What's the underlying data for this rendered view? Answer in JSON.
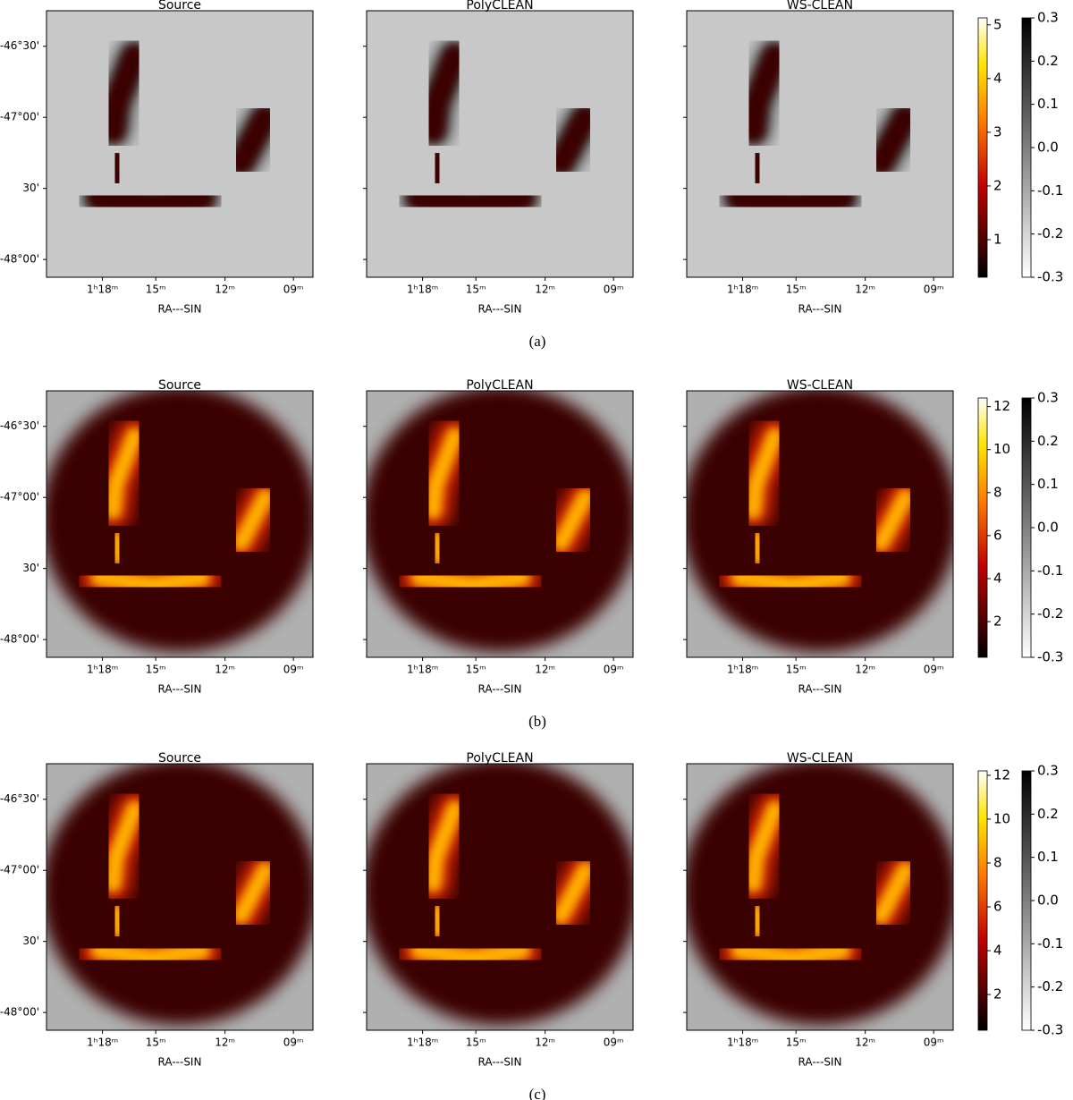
{
  "figure": {
    "rows": [
      {
        "label": "(a)",
        "panels": [
          "Source",
          "PolyCLEAN",
          "WS-CLEAN"
        ],
        "xticks": [
          "1ʰ18ᵐ",
          "15ᵐ",
          "12ᵐ",
          "09ᵐ"
        ],
        "yticks": [
          "-46°30'",
          "-47°00'",
          "30'",
          "-48°00'"
        ],
        "xlabel": "RA---SIN",
        "colorbar": {
          "lim": [
            0.3,
            5.13
          ],
          "ticks": [
            1,
            2,
            3,
            4,
            5
          ]
        },
        "colorbar2": {
          "lim": [
            -0.3,
            0.3
          ],
          "ticks": [
            0.3,
            0.2,
            0.1,
            {
              "value": 0,
              "label": "0.0"
            },
            -0.1,
            -0.2,
            -0.3
          ]
        }
      },
      {
        "label": "(b)",
        "panels": [
          "Source",
          "PolyCLEAN",
          "WS-CLEAN"
        ],
        "xticks": [
          "1ʰ18ᵐ",
          "15ᵐ",
          "12ᵐ",
          "09ᵐ"
        ],
        "yticks": [
          "-46°30'",
          "-47°00'",
          "30'",
          "-48°00'"
        ],
        "xlabel": "RA---SIN",
        "colorbar": {
          "lim": [
            0.34,
            12.4
          ],
          "ticks": [
            2,
            4,
            6,
            8,
            10,
            12
          ]
        },
        "colorbar2": {
          "lim": [
            -0.3,
            0.3
          ],
          "ticks": [
            0.3,
            0.2,
            0.1,
            {
              "value": 0,
              "label": "0.0"
            },
            -0.1,
            -0.2,
            -0.3
          ]
        }
      },
      {
        "label": "(c)",
        "panels": [
          "Source",
          "PolyCLEAN",
          "WS-CLEAN"
        ],
        "xticks": [
          "1ʰ18ᵐ",
          "15ᵐ",
          "12ᵐ",
          "09ᵐ"
        ],
        "yticks": [
          "-46°30'",
          "-47°00'",
          "30'",
          "-48°00'"
        ],
        "xlabel": "RA---SIN",
        "colorbar": {
          "lim": [
            0.37,
            12.2
          ],
          "ticks": [
            2,
            4,
            6,
            8,
            10,
            12
          ]
        },
        "colorbar2": {
          "lim": [
            -0.3,
            0.3
          ],
          "ticks": [
            0.3,
            0.2,
            0.1,
            {
              "value": 0,
              "label": "0.0"
            },
            -0.1,
            -0.2,
            -0.3
          ]
        }
      }
    ]
  }
}
